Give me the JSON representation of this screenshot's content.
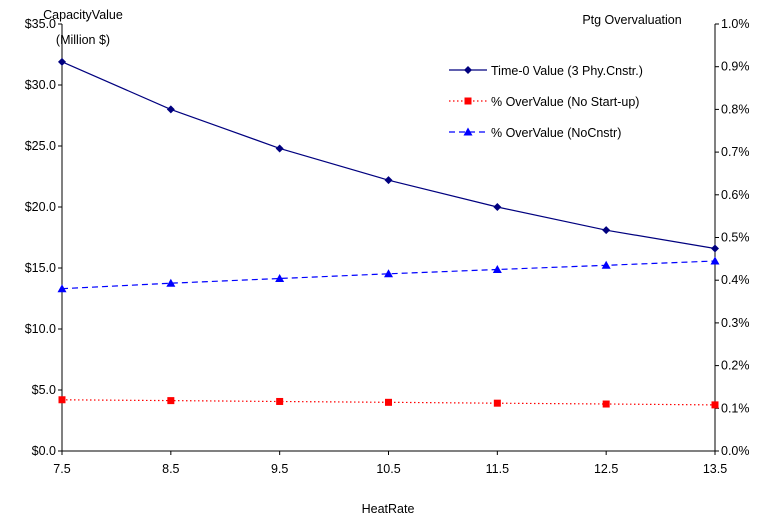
{
  "chart_data": {
    "type": "line",
    "xlabel": "HeatRate",
    "x": [
      7.5,
      8.5,
      9.5,
      10.5,
      11.5,
      12.5,
      13.5
    ],
    "x_tick_labels": [
      "7.5",
      "8.5",
      "9.5",
      "10.5",
      "11.5",
      "12.5",
      "13.5"
    ],
    "y_left": {
      "title_line1": "CapacityValue",
      "title_line2": "(Million $)",
      "range": [
        0,
        35
      ],
      "tick_labels": [
        "$0.0",
        "$5.0",
        "$10.0",
        "$15.0",
        "$20.0",
        "$25.0",
        "$30.0",
        "$35.0"
      ]
    },
    "y_right": {
      "title": "Ptg Overvaluation",
      "range": [
        0,
        1.0
      ],
      "unit": "%",
      "tick_labels": [
        "0.0%",
        "0.1%",
        "0.2%",
        "0.3%",
        "0.4%",
        "0.5%",
        "0.6%",
        "0.7%",
        "0.8%",
        "0.9%",
        "1.0%"
      ]
    },
    "series": [
      {
        "name": "Time-0 Value (3 Phy.Cnstr.)",
        "axis": "left",
        "color": "#00007f",
        "marker": "diamond",
        "line_style": "solid",
        "values": [
          31.9,
          28.0,
          24.8,
          22.2,
          20.0,
          18.1,
          16.6
        ]
      },
      {
        "name": "% OverValue (No Start-up)",
        "axis": "right",
        "color": "#ff0000",
        "marker": "square",
        "line_style": "dotted",
        "values": [
          0.12,
          0.118,
          0.116,
          0.114,
          0.112,
          0.11,
          0.108
        ]
      },
      {
        "name": "% OverValue (NoCnstr)",
        "axis": "right",
        "color": "#0000ff",
        "marker": "triangle",
        "line_style": "dashed",
        "values": [
          0.38,
          0.393,
          0.404,
          0.415,
          0.425,
          0.435,
          0.445
        ]
      }
    ],
    "legend_placement": "top-right",
    "grid": false
  }
}
